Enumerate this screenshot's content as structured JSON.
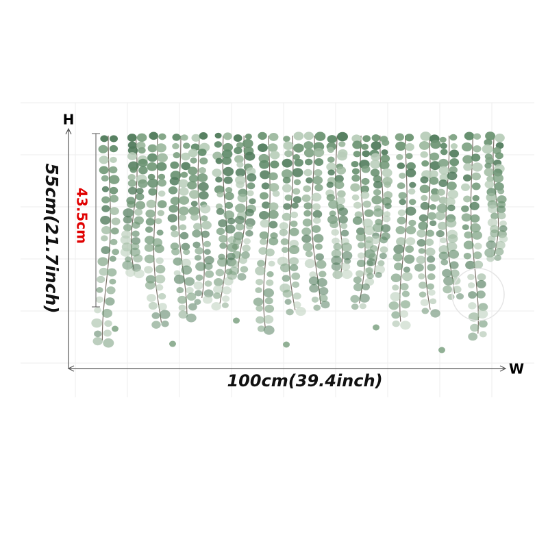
{
  "labels": {
    "height_axis": "H",
    "width_axis": "W",
    "total_height": "55cm(21.7inch)",
    "inner_height": "43.5cm",
    "width": "100cm(39.4inch)"
  }
}
